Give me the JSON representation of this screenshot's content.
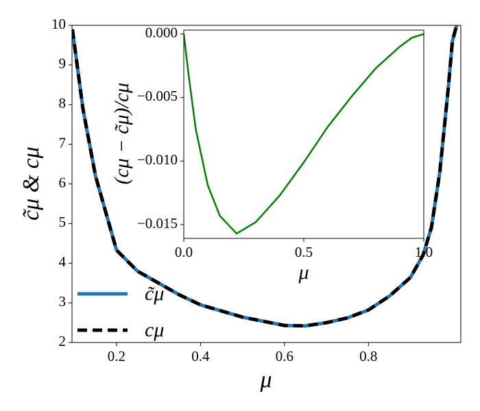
{
  "chart_data": [
    {
      "type": "line",
      "xlabel": "μ",
      "ylabel": "c̃μ  &  cμ",
      "xlim": [
        0.094,
        1.02
      ],
      "ylim": [
        2,
        10
      ],
      "xticks": [
        0.2,
        0.4,
        0.6,
        0.8
      ],
      "yticks": [
        2,
        3,
        4,
        5,
        6,
        7,
        8,
        9,
        10
      ],
      "legend": "lower left",
      "x": [
        0.095,
        0.12,
        0.15,
        0.2,
        0.25,
        0.3,
        0.35,
        0.4,
        0.5,
        0.6,
        0.65,
        0.7,
        0.75,
        0.8,
        0.85,
        0.9,
        0.93,
        0.95,
        0.97,
        0.99,
        1.0,
        1.01
      ],
      "series": [
        {
          "name": "c̃μ",
          "color": "#1f77b4",
          "style": "solid",
          "values": [
            9.9,
            7.9,
            6.2,
            4.33,
            3.8,
            3.5,
            3.2,
            2.95,
            2.64,
            2.43,
            2.42,
            2.5,
            2.62,
            2.82,
            3.17,
            3.64,
            4.2,
            4.9,
            6.3,
            8.4,
            9.6,
            10
          ]
        },
        {
          "name": "cμ",
          "color": "#000000",
          "style": "dashed",
          "values": [
            9.9,
            7.9,
            6.2,
            4.33,
            3.8,
            3.5,
            3.2,
            2.95,
            2.64,
            2.43,
            2.42,
            2.5,
            2.62,
            2.82,
            3.17,
            3.64,
            4.2,
            4.9,
            6.3,
            8.4,
            9.6,
            10
          ]
        }
      ]
    },
    {
      "type": "line",
      "xlabel": "μ",
      "ylabel": "(cμ − c̃μ)/cμ",
      "xlim": [
        0,
        1
      ],
      "ylim": [
        -0.01608,
        0.0003
      ],
      "xticks": [
        {
          "value": 0,
          "label": "0.0"
        },
        {
          "value": 0.5,
          "label": "0.5"
        },
        {
          "value": 1,
          "label": "1.0"
        }
      ],
      "yticks": [
        {
          "value": 0,
          "label": "0.000"
        },
        {
          "value": -0.005,
          "label": "−0.005"
        },
        {
          "value": -0.01,
          "label": "−0.010"
        },
        {
          "value": -0.015,
          "label": "−0.015"
        }
      ],
      "x": [
        0,
        0.02,
        0.05,
        0.1,
        0.15,
        0.22,
        0.3,
        0.4,
        0.5,
        0.6,
        0.7,
        0.8,
        0.9,
        0.95,
        1.0
      ],
      "series": [
        {
          "color": "#008000",
          "style": "solid",
          "values": [
            0,
            -0.0032,
            -0.0075,
            -0.0119,
            -0.0143,
            -0.0157,
            -0.0148,
            -0.0127,
            -0.0101,
            -0.0073,
            -0.0049,
            -0.0027,
            -0.001,
            -0.0003,
            0
          ]
        }
      ]
    }
  ]
}
